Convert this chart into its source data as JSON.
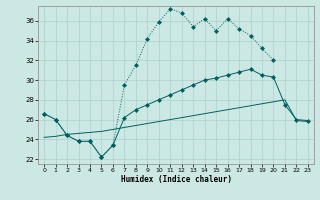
{
  "xlabel": "Humidex (Indice chaleur)",
  "xlim": [
    -0.5,
    23.5
  ],
  "ylim": [
    21.5,
    37.5
  ],
  "xticks": [
    0,
    1,
    2,
    3,
    4,
    5,
    6,
    7,
    8,
    9,
    10,
    11,
    12,
    13,
    14,
    15,
    16,
    17,
    18,
    19,
    20,
    21,
    22,
    23
  ],
  "yticks": [
    22,
    24,
    26,
    28,
    30,
    32,
    34,
    36
  ],
  "bg_color": "#cce8e4",
  "line_color": "#006060",
  "grid_color": "#aad0cc",
  "line1_x": [
    0,
    1,
    2,
    3,
    4,
    5,
    6,
    7,
    8,
    9,
    10,
    11,
    12,
    13,
    14,
    15,
    16,
    17,
    18,
    19,
    20,
    21,
    22,
    23
  ],
  "line1_y": [
    26.6,
    26.0,
    24.4,
    23.8,
    23.8,
    22.2,
    23.4,
    29.5,
    31.5,
    34.2,
    35.9,
    37.2,
    36.8,
    35.4,
    36.2,
    35.0,
    36.2,
    35.2,
    34.5,
    33.2,
    32.0,
    null,
    null,
    null
  ],
  "line2_x": [
    0,
    1,
    2,
    3,
    4,
    5,
    6,
    7,
    8,
    9,
    10,
    11,
    12,
    13,
    14,
    15,
    16,
    17,
    18,
    19,
    20,
    21,
    22,
    23
  ],
  "line2_y": [
    26.6,
    26.0,
    24.4,
    23.8,
    23.8,
    22.2,
    23.4,
    26.2,
    27.0,
    27.5,
    28.0,
    28.5,
    29.0,
    29.5,
    30.0,
    30.2,
    30.5,
    30.8,
    31.1,
    30.5,
    30.3,
    27.5,
    26.0,
    25.9
  ],
  "line3_x": [
    0,
    1,
    2,
    3,
    4,
    5,
    6,
    7,
    8,
    9,
    10,
    11,
    12,
    13,
    14,
    15,
    16,
    17,
    18,
    19,
    20,
    21,
    22,
    23
  ],
  "line3_y": [
    24.2,
    24.3,
    24.5,
    24.6,
    24.7,
    24.8,
    25.0,
    25.2,
    25.4,
    25.6,
    25.8,
    26.0,
    26.2,
    26.4,
    26.6,
    26.8,
    27.0,
    27.2,
    27.4,
    27.6,
    27.8,
    28.0,
    25.9,
    25.8
  ]
}
